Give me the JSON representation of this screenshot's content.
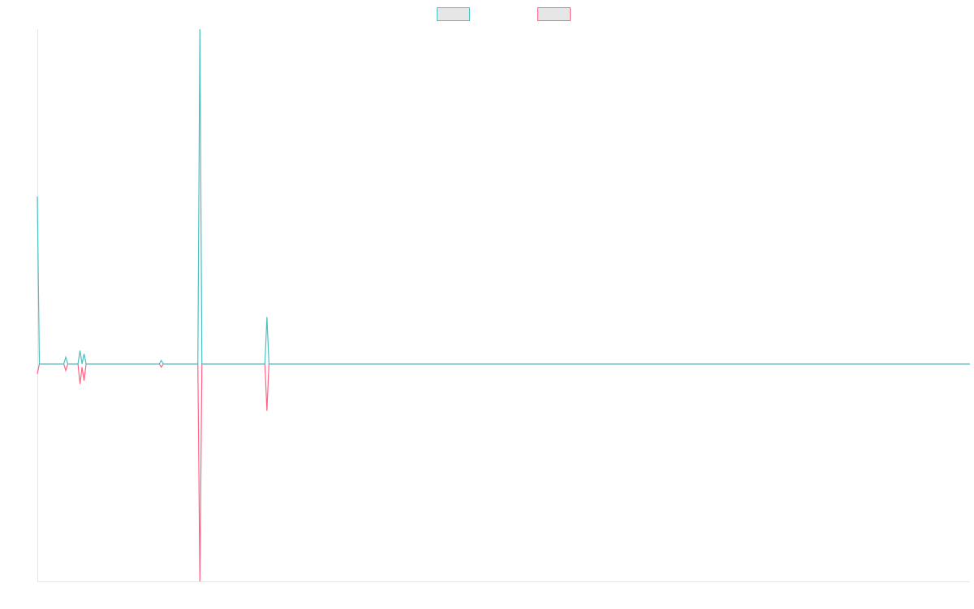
{
  "chart_data": {
    "type": "line",
    "x": [
      0,
      1,
      13,
      14,
      15,
      20,
      21,
      22,
      23,
      24,
      60,
      61,
      62,
      79,
      80,
      81,
      112,
      113,
      114,
      459
    ],
    "series": [
      {
        "color": "#4bc0c0",
        "values": [
          0.5,
          0,
          0,
          0.02,
          0,
          0,
          0.04,
          0,
          0.03,
          0,
          0,
          0.01,
          0,
          0,
          1,
          0,
          0,
          0.14,
          0,
          0
        ]
      },
      {
        "color": "#ff6384",
        "values": [
          -0.03,
          0,
          0,
          -0.02,
          0,
          0,
          -0.06,
          -0.01,
          -0.05,
          0,
          0,
          -0.01,
          0,
          0,
          -0.65,
          0,
          0,
          -0.14,
          0,
          0
        ]
      }
    ],
    "xlim": [
      0,
      459
    ],
    "ylim": [
      -0.65,
      1
    ],
    "legend": "top"
  }
}
